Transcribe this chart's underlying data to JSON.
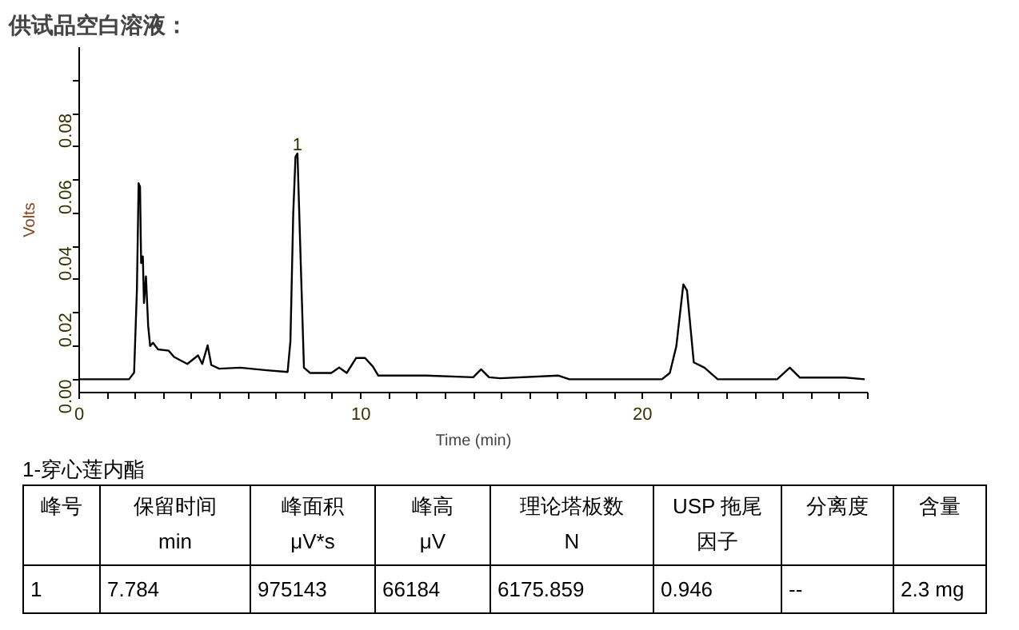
{
  "chart_data": {
    "type": "line",
    "title": "供试品空白溶液：",
    "xlabel": "Time (min)",
    "ylabel": "Volts",
    "x": [
      0,
      1.77,
      1.95,
      2.05,
      2.11,
      2.16,
      2.2,
      2.26,
      2.3,
      2.37,
      2.45,
      2.52,
      2.62,
      2.8,
      3.18,
      3.37,
      3.84,
      4.22,
      4.37,
      4.56,
      4.69,
      4.97,
      5.72,
      6.66,
      7.4,
      7.5,
      7.6,
      7.68,
      7.75,
      7.87,
      7.98,
      8.2,
      8.95,
      9.23,
      9.5,
      9.83,
      10.15,
      10.43,
      10.62,
      12.31,
      13.99,
      14.27,
      14.55,
      14.95,
      17.02,
      17.4,
      20.69,
      20.97,
      21.2,
      21.45,
      21.58,
      21.82,
      22.2,
      22.67,
      24.78,
      25.23,
      25.59,
      27.19,
      27.89
    ],
    "series": [
      {
        "color": "#000000",
        "values": [
          0,
          0,
          0.002,
          0.027,
          0.059,
          0.058,
          0.035,
          0.037,
          0.023,
          0.031,
          0.016,
          0.01,
          0.011,
          0.009,
          0.0086,
          0.0067,
          0.0046,
          0.0072,
          0.0046,
          0.0102,
          0.0043,
          0.0032,
          0.0035,
          0.0027,
          0.0022,
          0.0115,
          0.05,
          0.067,
          0.068,
          0.034,
          0.0035,
          0.0019,
          0.0019,
          0.0035,
          0.0019,
          0.0064,
          0.0064,
          0.0038,
          0.0011,
          0.0011,
          0.0006,
          0.003,
          0.0006,
          0.0003,
          0.0011,
          0,
          0,
          0.0019,
          0.0099,
          0.0286,
          0.0267,
          0.0051,
          0.0035,
          0,
          0,
          0.0035,
          0.0005,
          0.0005,
          0
        ]
      }
    ],
    "xlim": [
      0,
      28
    ],
    "ylim": [
      -0.004,
      0.1
    ],
    "xticks": [
      0,
      {
        "value": 1,
        "label": null
      },
      {
        "value": 2,
        "label": null
      },
      {
        "value": 3,
        "label": null
      },
      {
        "value": 4,
        "label": null
      },
      {
        "value": 5,
        "label": null
      },
      {
        "value": 6,
        "label": null
      },
      {
        "value": 7,
        "label": null
      },
      {
        "value": 8,
        "label": null
      },
      {
        "value": 9,
        "label": null
      },
      10,
      {
        "value": 11,
        "label": null
      },
      {
        "value": 12,
        "label": null
      },
      {
        "value": 13,
        "label": null
      },
      {
        "value": 14,
        "label": null
      },
      {
        "value": 15,
        "label": null
      },
      {
        "value": 16,
        "label": null
      },
      {
        "value": 17,
        "label": null
      },
      {
        "value": 18,
        "label": null
      },
      {
        "value": 19,
        "label": null
      },
      20,
      {
        "value": 21,
        "label": null
      },
      {
        "value": 22,
        "label": null
      },
      {
        "value": 23,
        "label": null
      },
      {
        "value": 24,
        "label": null
      },
      {
        "value": 25,
        "label": null
      },
      {
        "value": 26,
        "label": null
      },
      {
        "value": 27,
        "label": null
      },
      {
        "value": 28,
        "label": null
      }
    ],
    "yticks": [
      {
        "value": 0,
        "label": "0.00"
      },
      {
        "value": 0.01,
        "label": null
      },
      {
        "value": 0.02,
        "label": "0.02"
      },
      {
        "value": 0.03,
        "label": null
      },
      {
        "value": 0.04,
        "label": "0.04"
      },
      {
        "value": 0.05,
        "label": null
      },
      {
        "value": 0.06,
        "label": "0.06"
      },
      {
        "value": 0.07,
        "label": null
      },
      {
        "value": 0.08,
        "label": "0.08"
      },
      {
        "value": 0.09,
        "label": null
      }
    ],
    "grid": false,
    "marker": "none",
    "line_style": "solid",
    "annotations": [
      {
        "text": "1",
        "x": 7.75,
        "y": 0.068
      },
      "1-穿心莲内酯",
      "峰号",
      "保留时间\nmin",
      "峰面积\nμV*s",
      "峰高\nμV",
      "理论塔板数\nN",
      "USP 拖尾因子",
      "分离度",
      "含量",
      "1",
      "7.784",
      "975143",
      "66184",
      "6175.859",
      "0.946",
      "--",
      "2.3 mg"
    ]
  }
}
